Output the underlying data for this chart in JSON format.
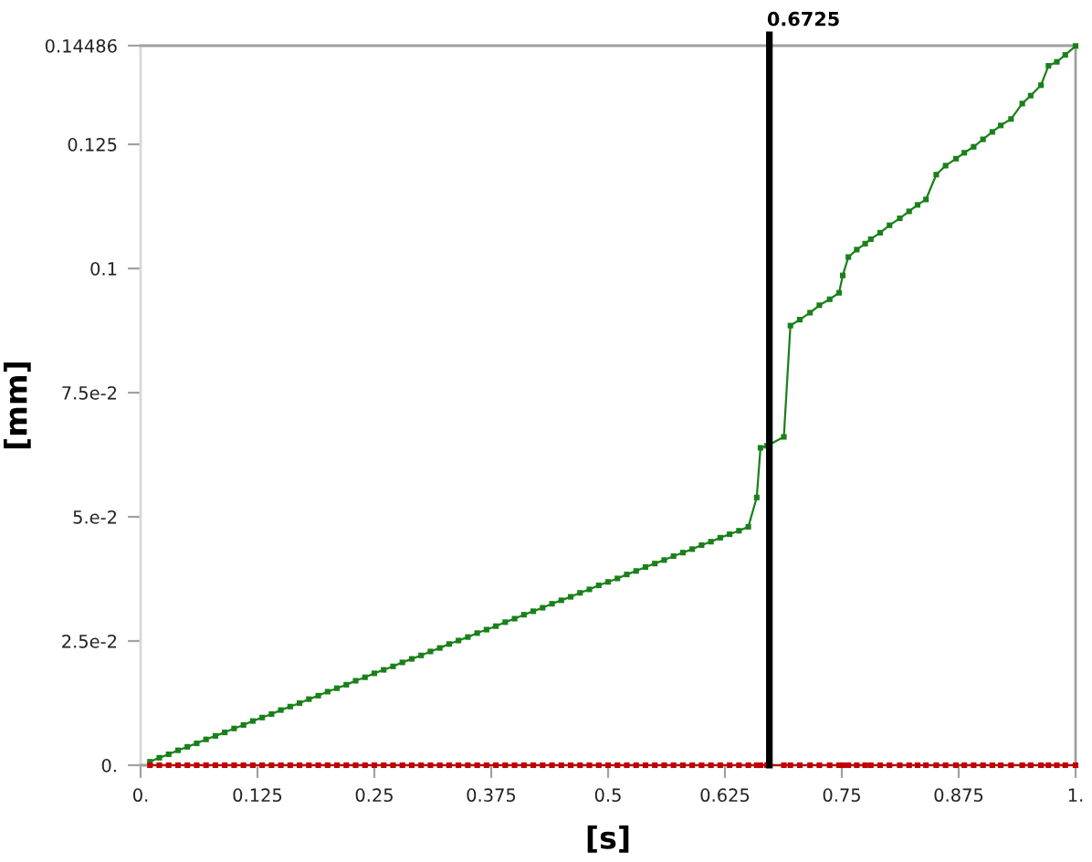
{
  "chart_data": {
    "type": "line",
    "xlabel": "[s]",
    "ylabel": "[mm]",
    "x": [
      0.01,
      0.02,
      0.03,
      0.04,
      0.05,
      0.06,
      0.07,
      0.08,
      0.09,
      0.1,
      0.11,
      0.12,
      0.13,
      0.14,
      0.15,
      0.16,
      0.17,
      0.18,
      0.19,
      0.2,
      0.21,
      0.22,
      0.23,
      0.24,
      0.25,
      0.26,
      0.27,
      0.28,
      0.29,
      0.3,
      0.31,
      0.32,
      0.33,
      0.34,
      0.35,
      0.36,
      0.37,
      0.38,
      0.39,
      0.4,
      0.41,
      0.42,
      0.43,
      0.44,
      0.45,
      0.46,
      0.47,
      0.48,
      0.49,
      0.5,
      0.51,
      0.52,
      0.53,
      0.54,
      0.55,
      0.56,
      0.57,
      0.58,
      0.59,
      0.6,
      0.61,
      0.62,
      0.63,
      0.64,
      0.65,
      0.659,
      0.663,
      0.67,
      0.688,
      0.695,
      0.705,
      0.716,
      0.726,
      0.737,
      0.747,
      0.751,
      0.757,
      0.766,
      0.775,
      0.781,
      0.791,
      0.801,
      0.812,
      0.822,
      0.831,
      0.84,
      0.851,
      0.861,
      0.872,
      0.881,
      0.891,
      0.901,
      0.911,
      0.92,
      0.931,
      0.943,
      0.952,
      0.963,
      0.971,
      0.98,
      0.989,
      1.0
    ],
    "series": [
      {
        "color": "#1a801a",
        "values": [
          0.0007,
          0.0015,
          0.0022,
          0.003,
          0.0037,
          0.0044,
          0.0052,
          0.0059,
          0.0066,
          0.0074,
          0.0081,
          0.0089,
          0.0096,
          0.0103,
          0.0111,
          0.0118,
          0.0125,
          0.0133,
          0.014,
          0.0148,
          0.0155,
          0.0162,
          0.017,
          0.0177,
          0.0185,
          0.0192,
          0.0199,
          0.0207,
          0.0214,
          0.0221,
          0.0229,
          0.0236,
          0.0244,
          0.0251,
          0.0258,
          0.0266,
          0.0273,
          0.028,
          0.0288,
          0.0295,
          0.0303,
          0.031,
          0.0317,
          0.0325,
          0.0332,
          0.0339,
          0.0347,
          0.0354,
          0.0362,
          0.0369,
          0.0376,
          0.0384,
          0.0391,
          0.0399,
          0.0406,
          0.0413,
          0.0421,
          0.0428,
          0.0435,
          0.0443,
          0.045,
          0.0458,
          0.0465,
          0.0472,
          0.048,
          0.0539,
          0.0639,
          0.0643,
          0.0661,
          0.0885,
          0.0897,
          0.0911,
          0.0926,
          0.0938,
          0.0951,
          0.0986,
          0.1023,
          0.1038,
          0.105,
          0.1059,
          0.1072,
          0.1087,
          0.1101,
          0.1115,
          0.1128,
          0.1139,
          0.1189,
          0.1207,
          0.1221,
          0.1233,
          0.1245,
          0.126,
          0.1275,
          0.1288,
          0.1301,
          0.1332,
          0.1348,
          0.1369,
          0.1408,
          0.1416,
          0.143,
          0.1448
        ]
      },
      {
        "color": "#c00000",
        "values": [
          0,
          0,
          0,
          0,
          0,
          0,
          0,
          0,
          0,
          0,
          0,
          0,
          0,
          0,
          0,
          0,
          0,
          0,
          0,
          0,
          0,
          0,
          0,
          0,
          0,
          0,
          0,
          0,
          0,
          0,
          0,
          0,
          0,
          0,
          0,
          0,
          0,
          0,
          0,
          0,
          0,
          0,
          0,
          0,
          0,
          0,
          0,
          0,
          0,
          0,
          0,
          0,
          0,
          0,
          0,
          0,
          0,
          0,
          0,
          0,
          0,
          0,
          0,
          0,
          0,
          0,
          0,
          0,
          0,
          0,
          0,
          0,
          0,
          0,
          0,
          0,
          0,
          0,
          0,
          0,
          0,
          0,
          0,
          0,
          0,
          0,
          0,
          0,
          0,
          0,
          0,
          0,
          0,
          0,
          0,
          0,
          0,
          0,
          0,
          0,
          0,
          0
        ]
      }
    ],
    "xlim": [
      0,
      1
    ],
    "xticks": [
      {
        "value": 0,
        "label": "0."
      },
      0.125,
      0.25,
      0.375,
      0.5,
      0.625,
      0.75,
      0.875,
      {
        "value": 1,
        "label": "1."
      }
    ],
    "ylim": [
      0,
      0.14486
    ],
    "yticks": [
      {
        "value": 0,
        "label": "0."
      },
      {
        "value": 0.025,
        "label": "2.5e-2"
      },
      {
        "value": 0.05,
        "label": "5.e-2"
      },
      {
        "value": 0.075,
        "label": "7.5e-2"
      },
      0.1,
      0.125,
      0.14486
    ],
    "ref_lines": [
      {
        "axis": "x",
        "value": 0.6725,
        "label": "0.6725",
        "color": "#000000"
      }
    ],
    "marker": "square",
    "line_style": "solid",
    "grid": false
  }
}
